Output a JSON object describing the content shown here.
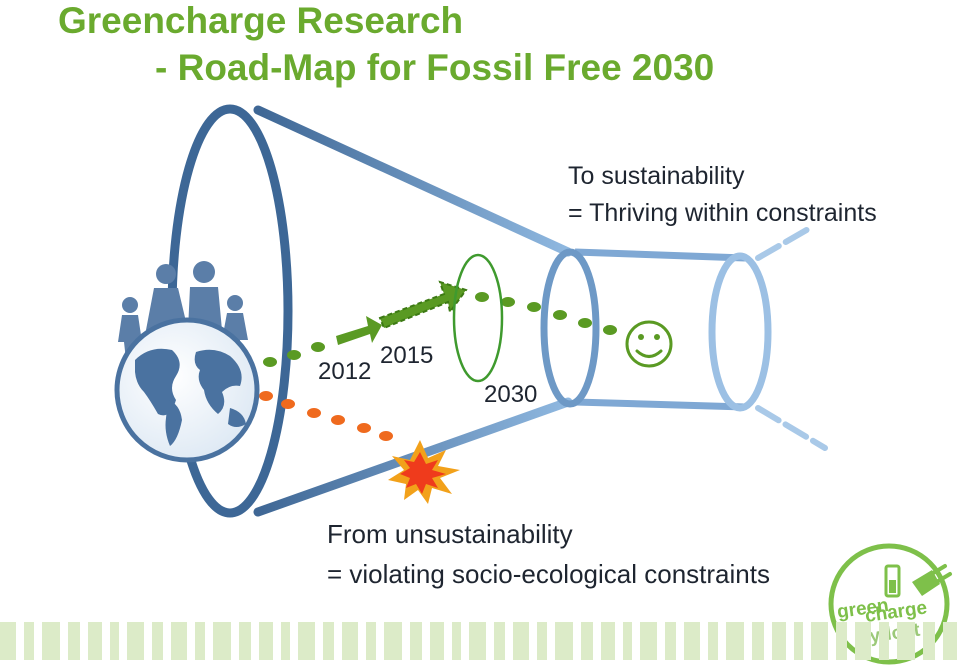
{
  "title": {
    "line1": "Greencharge Research",
    "line2": "- Road-Map for Fossil Free 2030"
  },
  "sustainability": {
    "line1": "To sustainability",
    "line2": "= Thriving within constraints"
  },
  "unsustainability": {
    "line1": "From unsustainability",
    "line2": "= violating socio-ecological constraints"
  },
  "years": {
    "y2012": "2012",
    "y2015": "2015",
    "y2030": "2030"
  },
  "colors": {
    "title_green": "#6aaa2e",
    "funnel_blue": "#4f77a6",
    "path_green": "#5a9a23",
    "path_orange": "#ef6a1e"
  },
  "icons": [
    "earth-globe-icon",
    "family-people-icon",
    "smiley-face-icon",
    "explosion-icon",
    "greencharge-logo"
  ],
  "logo": {
    "text1": "green",
    "text2": "charge",
    "text3": "sydost"
  }
}
